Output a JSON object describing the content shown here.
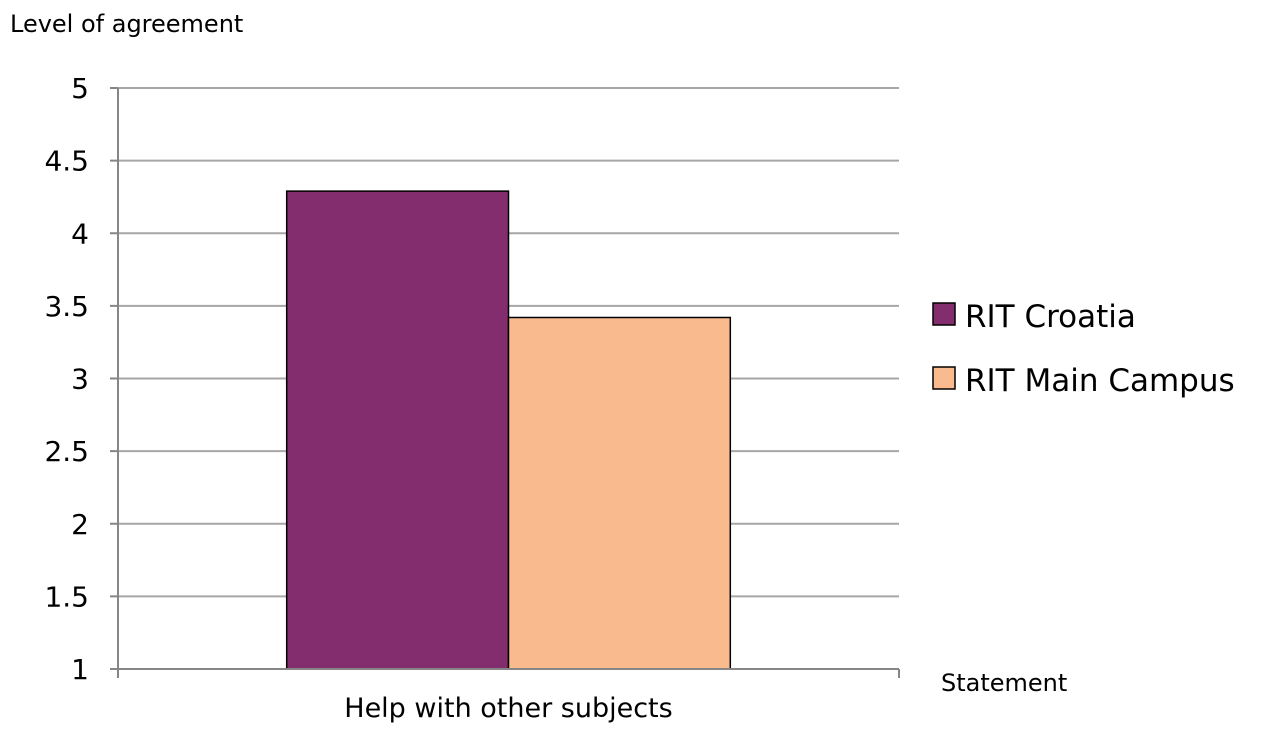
{
  "chart_data": {
    "type": "bar",
    "title": "",
    "ylabel": "Level of agreement",
    "xlabel": "Statement",
    "categories": [
      "Help with other subjects"
    ],
    "series": [
      {
        "name": "RIT Croatia",
        "values": [
          4.29
        ],
        "color": "#842D6E"
      },
      {
        "name": "RIT Main Campus",
        "values": [
          3.42
        ],
        "color": "#F9BB8D"
      }
    ],
    "ylim": [
      1,
      5
    ],
    "yticks": [
      "1",
      "1.5",
      "2",
      "2.5",
      "3",
      "3.5",
      "4",
      "4.5",
      "5"
    ],
    "grid": true,
    "legend_position": "right",
    "colors": {
      "gridline": "#A6A6A6",
      "axis": "#868686",
      "bar_border": "#000000"
    }
  }
}
